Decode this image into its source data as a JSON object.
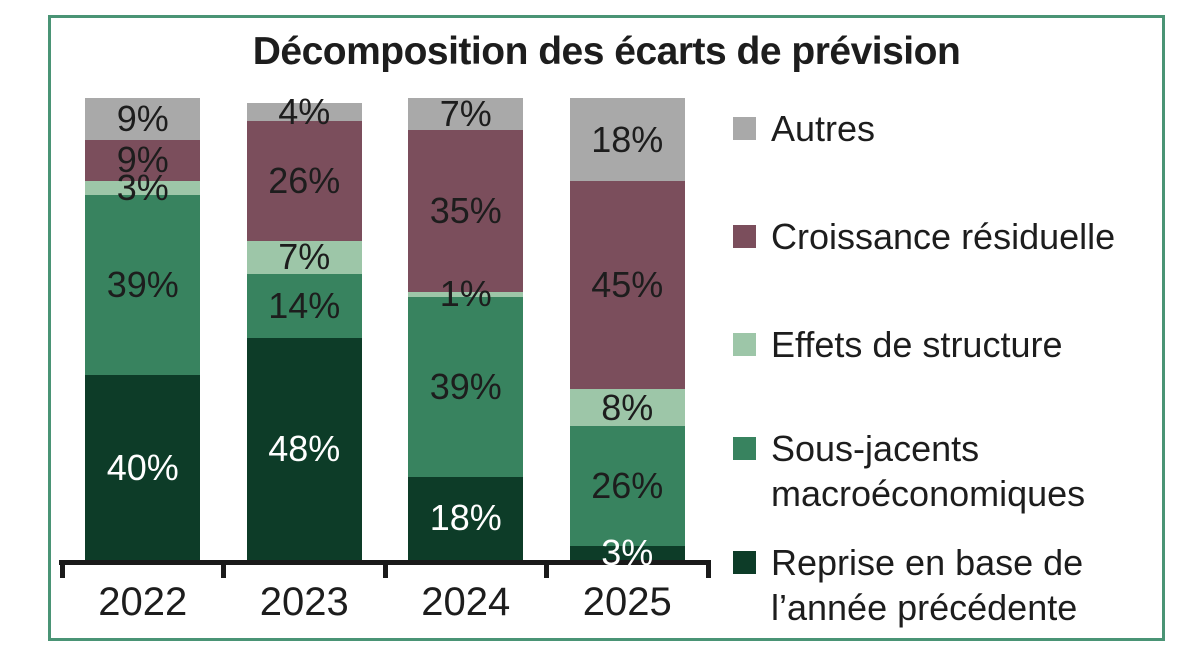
{
  "chart_data": {
    "type": "stacked_bar",
    "title": "Décomposition des écarts de prévision",
    "categories": [
      "2022",
      "2023",
      "2024",
      "2025"
    ],
    "unit": "%",
    "ylim": [
      0,
      100
    ],
    "grid": false,
    "legend_position": "right",
    "series": [
      {
        "name": "Reprise en base de l’année précédente",
        "color": "#0d3c28",
        "label_color": "#ffffff",
        "values": [
          40,
          48,
          18,
          3
        ]
      },
      {
        "name": "Sous-jacents macroéconomiques",
        "color": "#38835f",
        "label_color": "#1d1d1d",
        "values": [
          39,
          14,
          39,
          26
        ]
      },
      {
        "name": "Effets de structure",
        "color": "#9dc6a8",
        "label_color": "#1d1d1d",
        "values": [
          3,
          7,
          1,
          8
        ]
      },
      {
        "name": "Croissance résiduelle",
        "color": "#7b4e5c",
        "label_color": "#1d1d1d",
        "values": [
          9,
          26,
          35,
          45
        ]
      },
      {
        "name": "Autres",
        "color": "#a9a9a9",
        "label_color": "#1d1d1d",
        "values": [
          9,
          4,
          7,
          18
        ]
      }
    ],
    "data_labels": {
      "2022": [
        "40%",
        "39%",
        "3%",
        "9%",
        "9%"
      ],
      "2023": [
        "48%",
        "14%",
        "7%",
        "26%",
        "4%"
      ],
      "2024": [
        "18%",
        "39%",
        "1%",
        "35%",
        "7%"
      ],
      "2025": [
        "3%",
        "26%",
        "8%",
        "45%",
        "18%"
      ]
    },
    "legend": [
      {
        "series": 4,
        "lines": [
          "Autres"
        ]
      },
      {
        "series": 3,
        "lines": [
          "Croissance résiduelle"
        ]
      },
      {
        "series": 2,
        "lines": [
          "Effets de structure"
        ]
      },
      {
        "series": 1,
        "lines": [
          "Sous-jacents",
          "macroéconomiques"
        ]
      },
      {
        "series": 0,
        "lines": [
          "Reprise en base de",
          "l’année précédente"
        ]
      }
    ],
    "colors": {
      "frame_border": "#4a9475",
      "axis": "#1a1a1a",
      "text": "#1d1d1d",
      "background": "#ffffff"
    }
  }
}
